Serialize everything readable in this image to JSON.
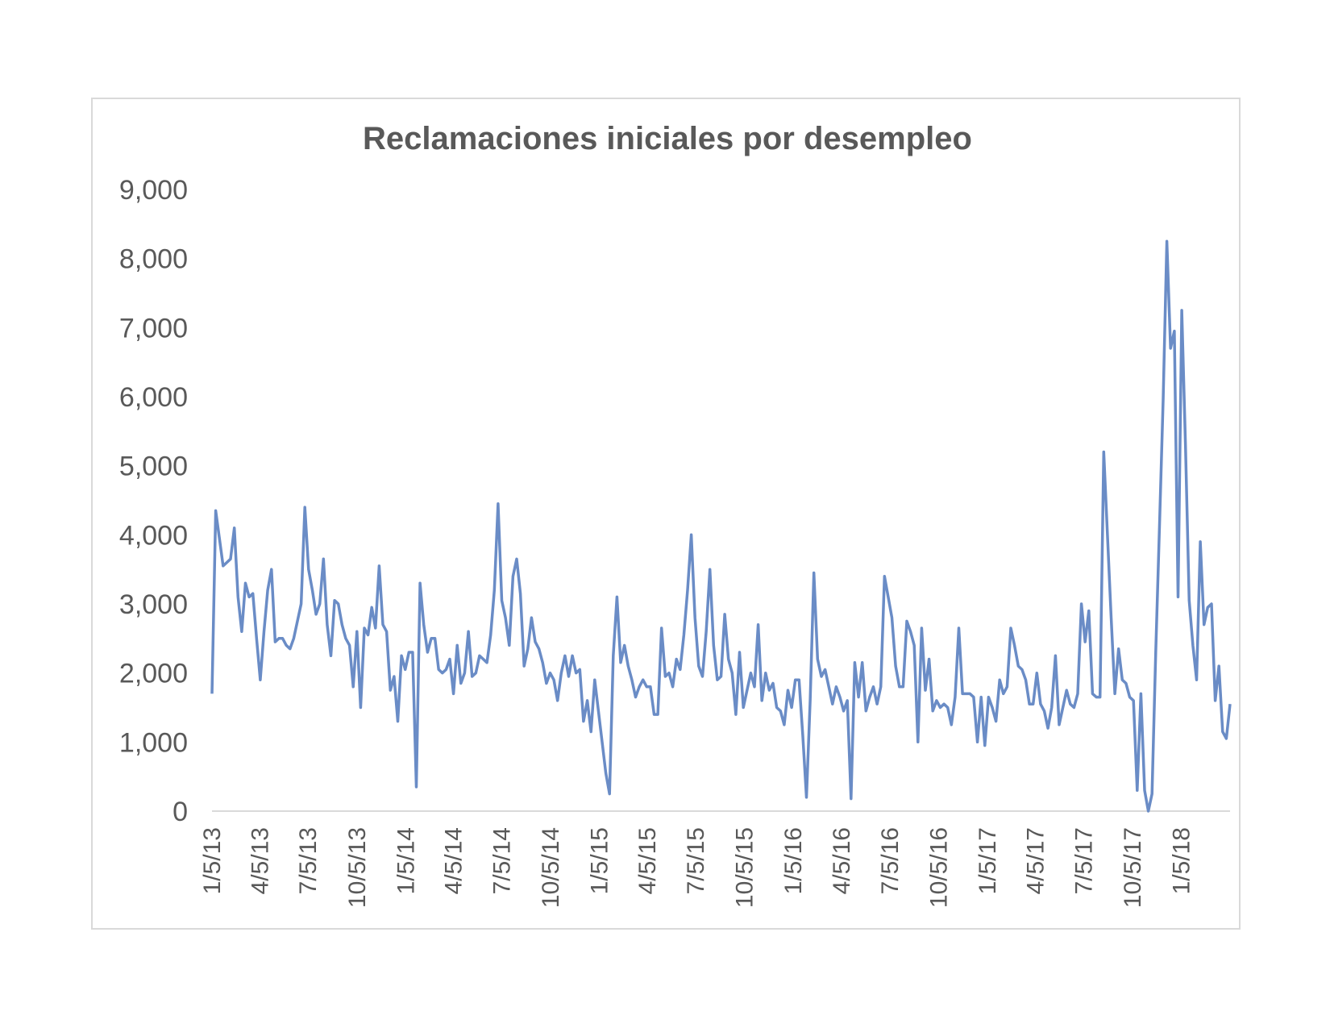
{
  "chart_data": {
    "type": "line",
    "title": "Reclamaciones iniciales por desempleo",
    "xlabel": "",
    "ylabel": "",
    "ylim": [
      0,
      9000
    ],
    "y_ticks": [
      "0",
      "1,000",
      "2,000",
      "3,000",
      "4,000",
      "5,000",
      "6,000",
      "7,000",
      "8,000",
      "9,000"
    ],
    "x_range": [
      "2013-01-05",
      "2018-04-07"
    ],
    "x_tick_labels": [
      "1/5/13",
      "4/5/13",
      "7/5/13",
      "10/5/13",
      "1/5/14",
      "4/5/14",
      "7/5/14",
      "10/5/14",
      "1/5/15",
      "4/5/15",
      "7/5/15",
      "10/5/15",
      "1/5/16",
      "4/5/16",
      "7/5/16",
      "10/5/16",
      "1/5/17",
      "4/5/17",
      "7/5/17",
      "10/5/17",
      "1/5/18"
    ],
    "x_tick_dates": [
      "2013-01-05",
      "2013-04-05",
      "2013-07-05",
      "2013-10-05",
      "2014-01-05",
      "2014-04-05",
      "2014-07-05",
      "2014-10-05",
      "2015-01-05",
      "2015-04-05",
      "2015-07-05",
      "2015-10-05",
      "2016-01-05",
      "2016-04-05",
      "2016-07-05",
      "2016-10-05",
      "2017-01-05",
      "2017-04-05",
      "2017-07-05",
      "2017-10-05",
      "2018-01-05"
    ],
    "grid": false,
    "legend": "none",
    "series": [
      {
        "color": "#6a8cc6",
        "x": [
          "2013-01-05",
          "2013-01-12",
          "2013-01-19",
          "2013-01-26",
          "2013-02-02",
          "2013-02-09",
          "2013-02-16",
          "2013-02-23",
          "2013-03-02",
          "2013-03-09",
          "2013-03-16",
          "2013-03-23",
          "2013-03-30",
          "2013-04-06",
          "2013-04-13",
          "2013-04-20",
          "2013-04-27",
          "2013-05-04",
          "2013-05-11",
          "2013-05-18",
          "2013-05-25",
          "2013-06-01",
          "2013-06-08",
          "2013-06-15",
          "2013-06-22",
          "2013-06-29",
          "2013-07-06",
          "2013-07-13",
          "2013-07-20",
          "2013-07-27",
          "2013-08-03",
          "2013-08-10",
          "2013-08-17",
          "2013-08-24",
          "2013-08-31",
          "2013-09-07",
          "2013-09-14",
          "2013-09-21",
          "2013-09-28",
          "2013-10-05",
          "2013-10-12",
          "2013-10-19",
          "2013-10-26",
          "2013-11-02",
          "2013-11-09",
          "2013-11-16",
          "2013-11-23",
          "2013-11-30",
          "2013-12-07",
          "2013-12-14",
          "2013-12-21",
          "2013-12-28",
          "2014-01-04",
          "2014-01-11",
          "2014-01-18",
          "2014-01-25",
          "2014-02-01",
          "2014-02-08",
          "2014-02-15",
          "2014-02-22",
          "2014-03-01",
          "2014-03-08",
          "2014-03-15",
          "2014-03-22",
          "2014-03-29",
          "2014-04-05",
          "2014-04-12",
          "2014-04-19",
          "2014-04-26",
          "2014-05-03",
          "2014-05-10",
          "2014-05-17",
          "2014-05-24",
          "2014-05-31",
          "2014-06-07",
          "2014-06-14",
          "2014-06-21",
          "2014-06-28",
          "2014-07-05",
          "2014-07-12",
          "2014-07-19",
          "2014-07-26",
          "2014-08-02",
          "2014-08-09",
          "2014-08-16",
          "2014-08-23",
          "2014-08-30",
          "2014-09-06",
          "2014-09-13",
          "2014-09-20",
          "2014-09-27",
          "2014-10-04",
          "2014-10-11",
          "2014-10-18",
          "2014-10-25",
          "2014-11-01",
          "2014-11-08",
          "2014-11-15",
          "2014-11-22",
          "2014-11-29",
          "2014-12-06",
          "2014-12-13",
          "2014-12-20",
          "2014-12-27",
          "2015-01-03",
          "2015-01-10",
          "2015-01-17",
          "2015-01-24",
          "2015-01-31",
          "2015-02-07",
          "2015-02-14",
          "2015-02-21",
          "2015-02-28",
          "2015-03-07",
          "2015-03-14",
          "2015-03-21",
          "2015-03-28",
          "2015-04-04",
          "2015-04-11",
          "2015-04-18",
          "2015-04-25",
          "2015-05-02",
          "2015-05-09",
          "2015-05-16",
          "2015-05-23",
          "2015-05-30",
          "2015-06-06",
          "2015-06-13",
          "2015-06-20",
          "2015-06-27",
          "2015-07-04",
          "2015-07-11",
          "2015-07-18",
          "2015-07-25",
          "2015-08-01",
          "2015-08-08",
          "2015-08-15",
          "2015-08-22",
          "2015-08-29",
          "2015-09-05",
          "2015-09-12",
          "2015-09-19",
          "2015-09-26",
          "2015-10-03",
          "2015-10-10",
          "2015-10-17",
          "2015-10-24",
          "2015-10-31",
          "2015-11-07",
          "2015-11-14",
          "2015-11-21",
          "2015-11-28",
          "2015-12-05",
          "2015-12-12",
          "2015-12-19",
          "2015-12-26",
          "2016-01-02",
          "2016-01-09",
          "2016-01-16",
          "2016-01-23",
          "2016-01-30",
          "2016-02-06",
          "2016-02-13",
          "2016-02-20",
          "2016-02-27",
          "2016-03-05",
          "2016-03-12",
          "2016-03-19",
          "2016-03-26",
          "2016-04-02",
          "2016-04-09",
          "2016-04-16",
          "2016-04-23",
          "2016-04-30",
          "2016-05-07",
          "2016-05-14",
          "2016-05-21",
          "2016-05-28",
          "2016-06-04",
          "2016-06-11",
          "2016-06-18",
          "2016-06-25",
          "2016-07-02",
          "2016-07-09",
          "2016-07-16",
          "2016-07-23",
          "2016-07-30",
          "2016-08-06",
          "2016-08-13",
          "2016-08-20",
          "2016-08-27",
          "2016-09-03",
          "2016-09-10",
          "2016-09-17",
          "2016-09-24",
          "2016-10-01",
          "2016-10-08",
          "2016-10-15",
          "2016-10-22",
          "2016-10-29",
          "2016-11-05",
          "2016-11-12",
          "2016-11-19",
          "2016-11-26",
          "2016-12-03",
          "2016-12-10",
          "2016-12-17",
          "2016-12-24",
          "2016-12-31",
          "2017-01-07",
          "2017-01-14",
          "2017-01-21",
          "2017-01-28",
          "2017-02-04",
          "2017-02-11",
          "2017-02-18",
          "2017-02-25",
          "2017-03-04",
          "2017-03-11",
          "2017-03-18",
          "2017-03-25",
          "2017-04-01",
          "2017-04-08",
          "2017-04-15",
          "2017-04-22",
          "2017-04-29",
          "2017-05-06",
          "2017-05-13",
          "2017-05-20",
          "2017-05-27",
          "2017-06-03",
          "2017-06-10",
          "2017-06-17",
          "2017-06-24",
          "2017-07-01",
          "2017-07-08",
          "2017-07-15",
          "2017-07-22",
          "2017-07-29",
          "2017-08-05",
          "2017-08-12",
          "2017-08-19",
          "2017-08-26",
          "2017-09-02",
          "2017-09-09",
          "2017-09-16",
          "2017-09-23",
          "2017-09-30",
          "2017-10-07",
          "2017-10-14",
          "2017-10-21",
          "2017-10-28",
          "2017-11-04",
          "2017-11-11",
          "2017-11-18",
          "2017-11-25",
          "2017-12-02",
          "2017-12-09",
          "2017-12-16",
          "2017-12-23",
          "2017-12-30",
          "2018-01-06",
          "2018-01-13",
          "2018-01-20",
          "2018-01-27",
          "2018-02-03",
          "2018-02-10",
          "2018-02-17",
          "2018-02-24",
          "2018-03-03",
          "2018-03-10",
          "2018-03-17",
          "2018-03-24",
          "2018-03-31",
          "2018-04-07"
        ],
        "values": [
          1700,
          4350,
          3950,
          3550,
          3600,
          3650,
          4100,
          3100,
          2600,
          3300,
          3100,
          3150,
          2500,
          1900,
          2600,
          3200,
          3500,
          2450,
          2500,
          2500,
          2400,
          2350,
          2500,
          2750,
          3000,
          4400,
          3500,
          3200,
          2850,
          3000,
          3650,
          2700,
          2250,
          3050,
          3000,
          2700,
          2500,
          2400,
          1800,
          2600,
          1500,
          2650,
          2550,
          2950,
          2650,
          3550,
          2700,
          2600,
          1750,
          1950,
          1300,
          2250,
          2050,
          2300,
          2300,
          350,
          3300,
          2700,
          2300,
          2500,
          2500,
          2050,
          2000,
          2050,
          2200,
          1700,
          2400,
          1850,
          2000,
          2600,
          1950,
          2000,
          2250,
          2200,
          2150,
          2550,
          3200,
          4450,
          3050,
          2800,
          2400,
          3400,
          3650,
          3150,
          2100,
          2350,
          2800,
          2450,
          2350,
          2150,
          1850,
          2000,
          1900,
          1600,
          2000,
          2250,
          1950,
          2250,
          2000,
          2050,
          1300,
          1600,
          1150,
          1900,
          1450,
          1000,
          550,
          250,
          2250,
          3100,
          2150,
          2400,
          2100,
          1900,
          1650,
          1800,
          1900,
          1800,
          1800,
          1400,
          1400,
          2650,
          1950,
          2000,
          1800,
          2200,
          2050,
          2550,
          3200,
          4000,
          2800,
          2100,
          1950,
          2600,
          3500,
          2400,
          1900,
          1950,
          2850,
          2200,
          2000,
          1400,
          2300,
          1500,
          1750,
          2000,
          1800,
          2700,
          1600,
          2000,
          1750,
          1850,
          1500,
          1450,
          1250,
          1750,
          1500,
          1900,
          1900,
          1100,
          200,
          1600,
          3450,
          2200,
          1950,
          2050,
          1800,
          1550,
          1800,
          1650,
          1450,
          1600,
          180,
          2150,
          1650,
          2150,
          1450,
          1650,
          1800,
          1550,
          1800,
          3400,
          3100,
          2800,
          2100,
          1800,
          1800,
          2750,
          2600,
          2400,
          1000,
          2650,
          1750,
          2200,
          1450,
          1600,
          1500,
          1550,
          1500,
          1250,
          1650,
          2650,
          1700,
          1700,
          1700,
          1650,
          1000,
          1650,
          950,
          1650,
          1500,
          1300,
          1900,
          1700,
          1800,
          2650,
          2400,
          2100,
          2050,
          1900,
          1550,
          1550,
          2000,
          1550,
          1450,
          1200,
          1500,
          2250,
          1250,
          1500,
          1750,
          1550,
          1500,
          1700,
          3000,
          2450,
          2900,
          1700,
          1650,
          1650,
          5200,
          4000,
          2800,
          1700,
          2350,
          1900,
          1850,
          1650,
          1600,
          300,
          1700,
          300,
          0,
          250,
          2300,
          4100,
          5950,
          8250,
          6700,
          6950,
          3100,
          7250,
          5300,
          3050,
          2400,
          1900,
          3900,
          2700,
          2950,
          3000,
          1600,
          2100,
          1150,
          1050,
          1550
        ]
      }
    ]
  }
}
